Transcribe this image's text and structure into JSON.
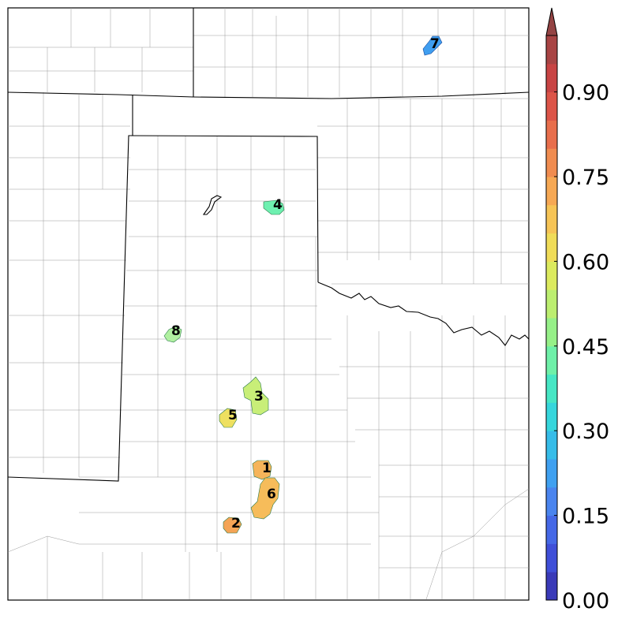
{
  "colorbar": {
    "ticks": [
      "0.00",
      "0.15",
      "0.30",
      "0.45",
      "0.60",
      "0.75",
      "0.90"
    ],
    "tick_values": [
      0.0,
      0.15,
      0.3,
      0.45,
      0.6,
      0.75,
      0.9
    ],
    "min": 0.0,
    "max": 1.0,
    "extend": "max",
    "colors": [
      "#3a3ab8",
      "#3f4fd8",
      "#4568e6",
      "#4a84ee",
      "#3fa0f0",
      "#36bce8",
      "#36d6dc",
      "#46e6c4",
      "#6ef0a8",
      "#96f088",
      "#bcee70",
      "#dcea5e",
      "#f0dc58",
      "#f6c456",
      "#f6a854",
      "#f08c50",
      "#e86e4c",
      "#dc5448",
      "#c84444",
      "#a84444"
    ],
    "extend_color": "#944444"
  },
  "cells": [
    {
      "id": "1",
      "value": 0.78,
      "color": "#f6b45a"
    },
    {
      "id": "2",
      "value": 0.8,
      "color": "#f4a456"
    },
    {
      "id": "3",
      "value": 0.55,
      "color": "#c8ee78"
    },
    {
      "id": "4",
      "value": 0.44,
      "color": "#6ef0b0"
    },
    {
      "id": "5",
      "value": 0.64,
      "color": "#eee060"
    },
    {
      "id": "6",
      "value": 0.76,
      "color": "#f6bc5a"
    },
    {
      "id": "7",
      "value": 0.22,
      "color": "#3f9ef0"
    },
    {
      "id": "8",
      "value": 0.52,
      "color": "#b0f0a0"
    }
  ]
}
